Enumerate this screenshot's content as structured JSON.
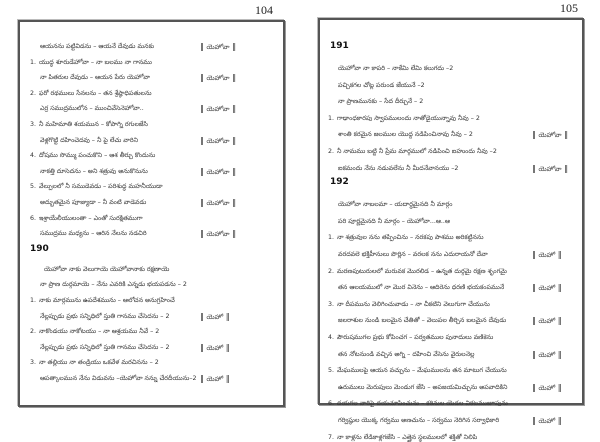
{
  "left_page": {
    "page_number": "104",
    "blocks": [
      {
        "type": "line",
        "indent": 1,
        "text": "ఆయనను పట్టివిడను – ఆయనే దేవుడు మనకు",
        "refrain": "యెహోవా"
      },
      {
        "type": "line",
        "num": "1.",
        "text": "యుద్ధ శూరుడేహోవా – నా బలము నా గానము"
      },
      {
        "type": "line",
        "indent": 1,
        "text": "నా పితరుల దేవుడు – ఆయన పేరు యెహోవా",
        "refrain": "యెహోవా"
      },
      {
        "type": "line",
        "num": "2.",
        "text": "ఫరో రథములు సేనలను – తన శ్రేష్ఠాధిపతులను"
      },
      {
        "type": "line",
        "indent": 1,
        "text": "ఎర్ర సముద్రములోన – ముంచివేసెనెహోవా..",
        "refrain": "యెహోవా"
      },
      {
        "type": "line",
        "num": "3.",
        "text": "నీ మహిమాతి శయమున – కోపాగ్ని రగులజేసి"
      },
      {
        "type": "line",
        "indent": 1,
        "text": "వెళ్లగొట్టి దహించెదవు – నీ పై లేచు వారిని",
        "refrain": "యెహోవా"
      },
      {
        "type": "line",
        "num": "4.",
        "text": "దోషము సొమ్ము పంచుకొని – ఆశ తీర్చు కొందును"
      },
      {
        "type": "line",
        "indent": 1,
        "text": "నాకత్తి దూసెదను – అని శత్రువు అనుకొనును",
        "refrain": "యెహోవా"
      },
      {
        "type": "line",
        "num": "5.",
        "text": "వేల్పులలో నీ సముడెవడు – పరిశుద్ధ మహనీయుడా"
      },
      {
        "type": "line",
        "indent": 1,
        "text": "అద్భుతమైన పూజ్యుడా – నీ వంటి వాడెవడు",
        "refrain": "యెహోవా"
      },
      {
        "type": "line",
        "num": "6.",
        "text": "ఇశ్రాయేలీయులంతా – ఎంతో సురక్షితముగా"
      },
      {
        "type": "line",
        "indent": 1,
        "text": "సముద్రము మధ్యను – ఆరిన నేలను నడచిరి",
        "refrain": "యెహోవా"
      },
      {
        "type": "heading",
        "text": "190"
      },
      {
        "type": "line",
        "indent": 2,
        "text": "యెహోవా నాకు వెలుగాయె యెహోవానాకు రక్షణాయె"
      },
      {
        "type": "line",
        "indent": 1,
        "text": "నా ప్రాణ దుర్గమాయె – నేను ఎవరికి ఎన్నడు భయపడను – 2"
      },
      {
        "type": "line",
        "num": "1.",
        "text": "నాకు మార్గమును ఉపదేశమును – ఆలోచన అనుగ్రహించే"
      },
      {
        "type": "line",
        "indent": 1,
        "text": "నేల్లప్పుడు ప్రభు సన్నిధిలో స్తుతి గానము చేసెదను – 2",
        "refrain": "యెహో"
      },
      {
        "type": "line",
        "num": "2.",
        "text": "నాకొండయు నాకోటయు – నా ఆశ్రయము నీవే – 2"
      },
      {
        "type": "line",
        "indent": 1,
        "text": "నేల్లప్పుడు ప్రభు సన్నిధిలో స్తుతి గానము చేసెదను – 2",
        "refrain": "యెహో"
      },
      {
        "type": "line",
        "num": "3.",
        "text": "నా తల్లియు నా తండ్రియు ఒకవేళ మరచినను – 2"
      },
      {
        "type": "line",
        "indent": 1,
        "text": "ఆపత్కాలమున నేను విడువను –యెహోవా నన్ను చేరదీయును–2",
        "refrain": "యెహో"
      }
    ]
  },
  "right_page": {
    "page_number": "105",
    "blocks": [
      {
        "type": "heading",
        "text": "191"
      },
      {
        "type": "line",
        "indent": 1,
        "text": "యెహోవా నా కాపరి – నాకేమి లేమి కలుగదు –2"
      },
      {
        "type": "line",
        "indent": 1,
        "text": "పచ్చికగల చోట్ల పరుండ జేయునే –2"
      },
      {
        "type": "line",
        "indent": 1,
        "text": "నా ప్రాణమునకు – సేద దీర్చునే – 2"
      },
      {
        "type": "line",
        "num": "1.",
        "text": "గాఢాంధకారపు స్వాపములందు నాతోడైయున్నావు నీవు – 2"
      },
      {
        "type": "line",
        "indent": 1,
        "text": "శాంతి కరమైన జలముల యొద్ద నడిపించినావు నీవు – 2",
        "refrain": "యెహోవా"
      },
      {
        "type": "line",
        "num": "2.",
        "text": "నీ నామము బట్టి నీ ప్రేమ మార్గములో నడిపించి ఐహుందు నీవు –2"
      },
      {
        "type": "line",
        "indent": 1,
        "text": "ఐకమందు నేను నడువలేను నీ మీదనేవానయు –2",
        "refrain": "యెహోవా"
      },
      {
        "type": "heading",
        "text": "192"
      },
      {
        "type": "line",
        "indent": 1,
        "text": "యెహోవా నాబలమా – యదార్థమైనది నీ మార్గం"
      },
      {
        "type": "line",
        "indent": 1,
        "text": "పరి పూర్ణమైనది నీ మార్గం – యెహోవా...ఆ..ఆ"
      },
      {
        "type": "line",
        "num": "1.",
        "text": "నా శత్రువుల నను తప్పించిను – నరకపు పాశము అరికట్టినను"
      },
      {
        "type": "line",
        "indent": 1,
        "text": "వరదవలె భక్తిహీనులు పొర్లిన – వరలక నను ఎదురాయనో దేవా",
        "refrain": "యెహో"
      },
      {
        "type": "line",
        "num": "2.",
        "text": "మరణపుటురులలో మరువక మొరలిడ – ఉన్నత దుర్గమై రక్షణ శృంగమై"
      },
      {
        "type": "line",
        "indent": 1,
        "text": "తన ఆలయములో నా మొర వినెను – ఆదిరెను ధరణి భయకంపమునే",
        "refrain": "యెహో"
      },
      {
        "type": "line",
        "num": "3.",
        "text": "నా దీపమును వెలిగించువాడు – నా చీకటిని వెలుగుగా చేయును"
      },
      {
        "type": "line",
        "indent": 1,
        "text": "జలరాశుల నుండి బలమైన చేతితో – వెలుపల తీర్చిన బలమైన దేవుడు",
        "refrain": "యెహో"
      },
      {
        "type": "line",
        "num": "4.",
        "text": "పౌరుషముగల ప్రభు కోపించగ – పర్వతముల పునాదులు వణికెను"
      },
      {
        "type": "line",
        "indent": 1,
        "text": "తన నోటనుండి వచ్చిన అగ్ని – దహించి వేసెను వైరులనెల్ల",
        "refrain": "యెహో"
      },
      {
        "type": "line",
        "num": "5.",
        "text": "మేఘములపై ఆయన వచ్చును – మేఘములను తన మాటుగ చేయును"
      },
      {
        "type": "line",
        "indent": 1,
        "text": "ఉరుములు మెరుపులు మెండుగ జేసి – అపజయమిచ్చును అపవాదికిని",
        "refrain": "యెహో"
      },
      {
        "type": "line",
        "num": "6.",
        "text": "దయగల వారిపై దయచూపించును – కఠినుల యెడల వికటముజూపును"
      },
      {
        "type": "line",
        "indent": 1,
        "text": "గర్విష్ఠుల యొక్క గర్వము అణచును – సర్వము నెరిగిన సర్వాధికారి",
        "refrain": "యెహో"
      },
      {
        "type": "line",
        "num": "7.",
        "text": "నా కాళ్లను లేడికాళ్లగజేసి – ఎత్తైన స్థలములలో శక్తితో నిలిపి"
      }
    ]
  }
}
